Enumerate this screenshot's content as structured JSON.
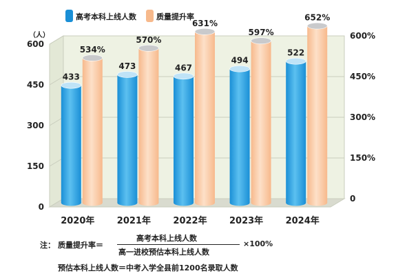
{
  "chart_data": {
    "type": "bar",
    "categories": [
      "2020年",
      "2021年",
      "2022年",
      "2023年",
      "2024年"
    ],
    "left_unit": "（人）",
    "left_ticks": [
      0,
      150,
      300,
      450,
      600
    ],
    "right_ticks": [
      "0",
      "150%",
      "300%",
      "450%",
      "600%"
    ],
    "ylim_left": [
      0,
      600
    ],
    "ylim_right": [
      0,
      600
    ],
    "grid": true,
    "legend_position": "top-left",
    "series": [
      {
        "name": "高考本科上线人数",
        "axis": "left",
        "values": [
          433,
          473,
          467,
          494,
          522
        ],
        "labels": [
          "433",
          "473",
          "467",
          "494",
          "522"
        ]
      },
      {
        "name": "质量提升率",
        "axis": "right",
        "values": [
          534,
          570,
          631,
          597,
          652
        ],
        "labels": [
          "534%",
          "570%",
          "631%",
          "597%",
          "652%"
        ]
      }
    ],
    "colors": {
      "blue_body": "#1a8fd6",
      "blue_light": "#5cc0f0",
      "blue_top": "#bfe3f7",
      "orange_body": "#f7b98c",
      "orange_light": "#fde0c8",
      "orange_top": "#c9cacc",
      "wall": "#eef2e3",
      "floor": "#d9dbcf",
      "grid": "#c9cdbd"
    }
  },
  "notes": {
    "prefix": "注：",
    "formula_lhs": "质量提升率＝",
    "numerator": "高考本科上线人数",
    "denominator": "高一进校预估本科上线人数",
    "suffix": "×100%",
    "definition": "预估本科上线人数＝中考入学全县前1200名录取人数"
  }
}
